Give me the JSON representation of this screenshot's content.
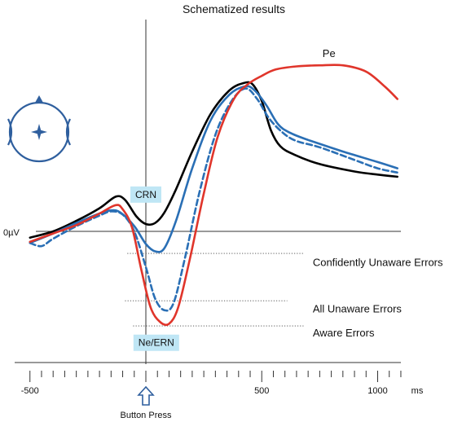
{
  "chart_data": {
    "type": "line",
    "title": "Schematized results",
    "xlabel": "ms",
    "ylabel": "",
    "xlim": [
      -500,
      1100
    ],
    "ylim": [
      -5.5,
      8
    ],
    "x_ticks": [
      -500,
      500,
      1000
    ],
    "x_minor_tick_step": 50,
    "y_zero_label": "0µV",
    "grid": false,
    "series": [
      {
        "key": "black",
        "color": "#000000",
        "style": "solid",
        "points": [
          [
            -500,
            -0.3
          ],
          [
            -400,
            0
          ],
          [
            -300,
            0.5
          ],
          [
            -200,
            1.1
          ],
          [
            -130,
            1.65
          ],
          [
            -90,
            1.5
          ],
          [
            -40,
            0.7
          ],
          [
            0,
            0.35
          ],
          [
            40,
            0.4
          ],
          [
            80,
            0.9
          ],
          [
            130,
            2.0
          ],
          [
            200,
            3.8
          ],
          [
            280,
            5.6
          ],
          [
            360,
            6.7
          ],
          [
            420,
            7.05
          ],
          [
            460,
            7.0
          ],
          [
            500,
            6.2
          ],
          [
            540,
            4.8
          ],
          [
            580,
            4.05
          ],
          [
            640,
            3.65
          ],
          [
            750,
            3.2
          ],
          [
            900,
            2.85
          ],
          [
            1000,
            2.7
          ],
          [
            1085,
            2.6
          ]
        ]
      },
      {
        "key": "blue-solid",
        "color": "#2a6fb5",
        "style": "solid",
        "points": [
          [
            -500,
            -0.55
          ],
          [
            -400,
            -0.1
          ],
          [
            -300,
            0.4
          ],
          [
            -200,
            0.85
          ],
          [
            -150,
            1.0
          ],
          [
            -110,
            0.9
          ],
          [
            -50,
            0.25
          ],
          [
            0,
            -0.6
          ],
          [
            40,
            -0.95
          ],
          [
            80,
            -0.8
          ],
          [
            130,
            0.5
          ],
          [
            200,
            3.0
          ],
          [
            280,
            5.3
          ],
          [
            360,
            6.5
          ],
          [
            430,
            6.9
          ],
          [
            470,
            6.7
          ],
          [
            520,
            6.0
          ],
          [
            570,
            5.1
          ],
          [
            620,
            4.7
          ],
          [
            700,
            4.35
          ],
          [
            850,
            3.8
          ],
          [
            1000,
            3.3
          ],
          [
            1085,
            3.0
          ]
        ]
      },
      {
        "key": "blue-dashed",
        "color": "#2a6fb5",
        "style": "dashed",
        "points": [
          [
            -500,
            -0.55
          ],
          [
            -450,
            -0.7
          ],
          [
            -400,
            -0.35
          ],
          [
            -300,
            0.25
          ],
          [
            -200,
            0.75
          ],
          [
            -150,
            0.95
          ],
          [
            -100,
            0.8
          ],
          [
            -50,
            0.0
          ],
          [
            0,
            -1.7
          ],
          [
            40,
            -3.2
          ],
          [
            80,
            -3.75
          ],
          [
            120,
            -3.4
          ],
          [
            170,
            -1.2
          ],
          [
            230,
            1.8
          ],
          [
            300,
            4.6
          ],
          [
            370,
            6.2
          ],
          [
            430,
            6.8
          ],
          [
            480,
            6.3
          ],
          [
            530,
            5.4
          ],
          [
            590,
            4.7
          ],
          [
            650,
            4.3
          ],
          [
            750,
            4.0
          ],
          [
            900,
            3.4
          ],
          [
            1000,
            3.0
          ],
          [
            1085,
            2.8
          ]
        ]
      },
      {
        "key": "red",
        "color": "#e0352b",
        "style": "solid",
        "points": [
          [
            -500,
            -0.5
          ],
          [
            -400,
            -0.1
          ],
          [
            -300,
            0.3
          ],
          [
            -200,
            0.85
          ],
          [
            -130,
            1.25
          ],
          [
            -100,
            1.05
          ],
          [
            -60,
            0.2
          ],
          [
            -20,
            -1.8
          ],
          [
            20,
            -3.6
          ],
          [
            60,
            -4.3
          ],
          [
            100,
            -4.4
          ],
          [
            140,
            -3.6
          ],
          [
            190,
            -1.3
          ],
          [
            250,
            1.8
          ],
          [
            310,
            4.5
          ],
          [
            380,
            6.3
          ],
          [
            440,
            7.0
          ],
          [
            500,
            7.4
          ],
          [
            560,
            7.7
          ],
          [
            650,
            7.85
          ],
          [
            750,
            7.9
          ],
          [
            850,
            7.9
          ],
          [
            950,
            7.6
          ],
          [
            1030,
            6.9
          ],
          [
            1085,
            6.3
          ]
        ]
      }
    ],
    "annotations": [
      {
        "text": "Pe",
        "x": 790,
        "y": 8.45,
        "align": "middle"
      },
      {
        "text": "Confidently Unaware Errors",
        "x": 720,
        "y": -1.5,
        "align": "start"
      },
      {
        "text": "All Unaware Errors",
        "x": 720,
        "y": -3.7,
        "align": "start"
      },
      {
        "text": "Aware Errors",
        "x": 720,
        "y": -4.85,
        "align": "start"
      }
    ],
    "dotted_lines": [
      {
        "from": -80,
        "to": 680,
        "y": -1.05
      },
      {
        "from": -90,
        "to": 610,
        "y": -3.3
      },
      {
        "from": -55,
        "to": 680,
        "y": -4.5
      }
    ],
    "badges": [
      {
        "text": "CRN",
        "x": 0,
        "y": 1.75
      },
      {
        "text": "Ne/ERN",
        "x": 45,
        "y": -5.3
      }
    ],
    "button_press_label": "Button Press"
  },
  "colors": {
    "black": "#000000",
    "blue": "#2a6fb5",
    "red": "#e0352b",
    "badge": "#bfe6f5",
    "head_icon": "#2f5f9e"
  },
  "icons": {
    "head": "scalp-electrode-head-icon",
    "arrow": "up-arrow-icon"
  }
}
